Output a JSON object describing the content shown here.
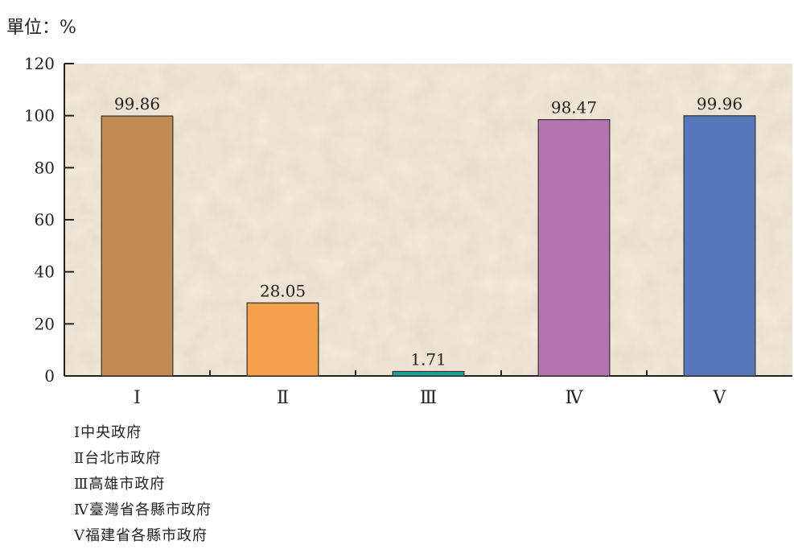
{
  "unit_label": "單位：%",
  "colors": {
    "plot_background": "#f6ead8",
    "axis": "#222222",
    "bar_outline": "#333333"
  },
  "chart_data": {
    "type": "bar",
    "categories": [
      "Ⅰ",
      "Ⅱ",
      "Ⅲ",
      "Ⅳ",
      "Ⅴ"
    ],
    "values": [
      99.86,
      28.05,
      1.71,
      98.47,
      99.96
    ],
    "data_labels": [
      "99.86",
      "28.05",
      "1.71",
      "98.47",
      "99.96"
    ],
    "bar_colors": [
      "#c08c52",
      "#f5a04b",
      "#1aa29a",
      "#b474b0",
      "#5577bb"
    ],
    "ylim": [
      0,
      120
    ],
    "yticks": [
      0,
      20,
      40,
      60,
      80,
      100,
      120
    ],
    "ytick_labels": [
      "0",
      "20",
      "40",
      "60",
      "80",
      "100",
      "120"
    ],
    "title": "",
    "xlabel": "",
    "ylabel": "",
    "grid": false,
    "legend_position": "bottom-left"
  },
  "legend": [
    "Ⅰ中央政府",
    "Ⅱ台北市政府",
    "Ⅲ高雄市政府",
    "Ⅳ臺灣省各縣市政府",
    "Ⅴ福建省各縣市政府"
  ]
}
